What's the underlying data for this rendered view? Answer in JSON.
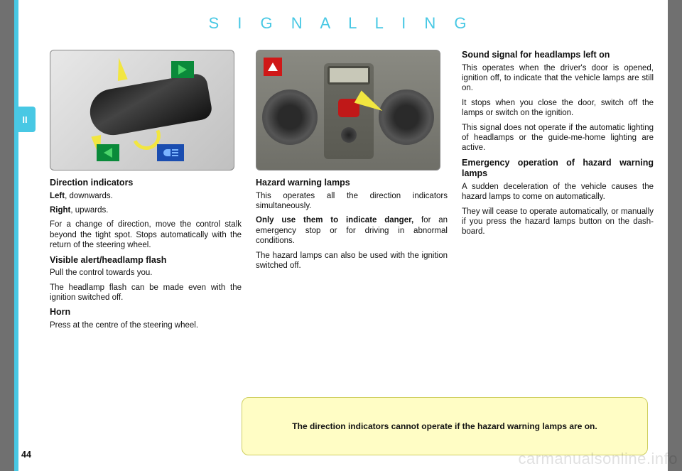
{
  "header": "S I G N A L L I N G",
  "side_tab": "II",
  "page_number": "44",
  "watermark": "carmanualsonline.info",
  "note": "The direction indicators cannot operate if the hazard warning lamps are on.",
  "col1": {
    "hd1": "Direction indicators",
    "p1a": "Left",
    "p1b": ", downwards.",
    "p2a": "Right",
    "p2b": ", upwards.",
    "p3": "For a change of direction, move the control stalk beyond the tight spot. Stops automatically with the return of the steering wheel.",
    "hd2": "Visible alert/headlamp flash",
    "p4": "Pull the control towards you.",
    "p5": "The headlamp flash can be made even with the ignition switched off.",
    "hd3": "Horn",
    "p6": "Press at the centre of the steering wheel."
  },
  "col2": {
    "hd1": "Hazard warning lamps",
    "p1": "This operates all the direction indicators simultaneously.",
    "p2a": "Only use them to indicate danger,",
    "p2b": " for an emergency stop or for driving in abnormal conditions.",
    "p3": "The hazard lamps can also be used with the ignition switched off."
  },
  "col3": {
    "hd1": "Sound signal for headlamps left on",
    "p1": "This operates when the driver's door is opened, ignition off, to indicate that the vehicle lamps are still on.",
    "p2": "It stops when you close the door, switch off the lamps or switch on the ignition.",
    "p3": "This signal does not operate if the automatic lighting of headlamps or the guide-me-home lighting are active.",
    "hd2": "Emergency operation of hazard warning lamps",
    "p4": "A sudden deceleration of the vehicle causes the hazard lamps to come on automatically.",
    "p5": "They will cease to operate automa­tically, or manually if you press the hazard lamps button on the dash­board."
  },
  "colors": {
    "accent": "#48c8e4",
    "note_bg": "#fffdc5",
    "green_indicator": "#0a8a3a",
    "blue_beam": "#1a4db0",
    "yellow_arrow": "#f2e640",
    "hazard_red": "#d01818"
  }
}
